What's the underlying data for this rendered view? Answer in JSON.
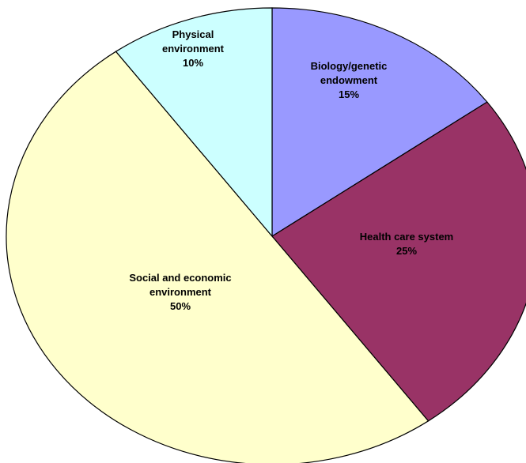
{
  "chart_data": {
    "type": "pie",
    "title": "",
    "start_angle_deg": 0,
    "direction": "clockwise",
    "legend": "none",
    "slices": [
      {
        "label": [
          "Biology/genetic",
          "endowment"
        ],
        "value_label": "15%",
        "value": 15,
        "color": "#9999ff"
      },
      {
        "label": [
          "Health care system"
        ],
        "value_label": "25%",
        "value": 25,
        "color": "#993366"
      },
      {
        "label": [
          "Social and economic",
          "environment"
        ],
        "value_label": "50%",
        "value": 50,
        "color": "#ffffcc"
      },
      {
        "label": [
          "Physical",
          "environment"
        ],
        "value_label": "10%",
        "value": 10,
        "color": "#ccffff"
      }
    ]
  }
}
